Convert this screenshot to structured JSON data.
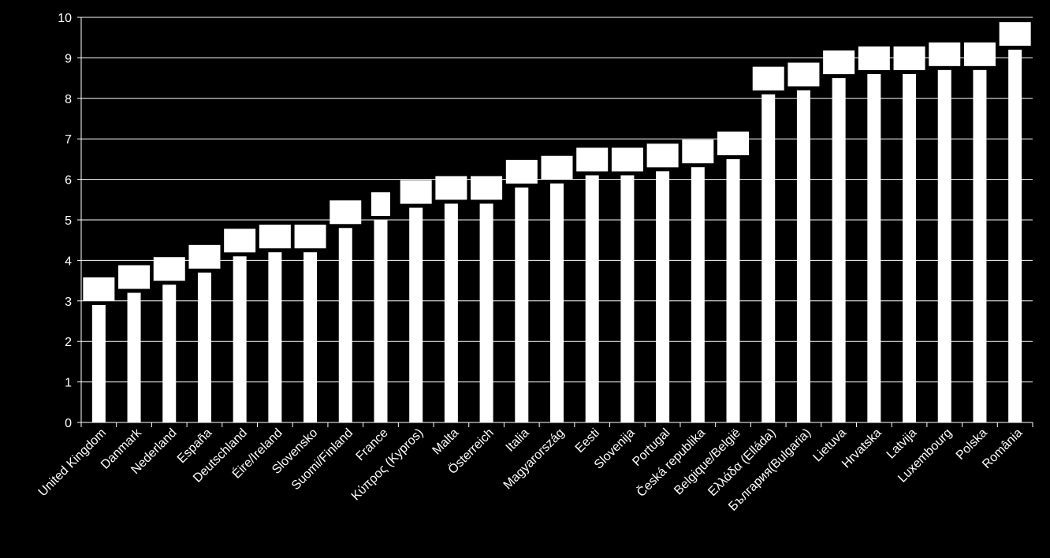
{
  "chart_data": {
    "type": "bar",
    "title": "",
    "xlabel": "",
    "ylabel": "",
    "ylim": [
      0,
      10
    ],
    "yticks": [
      "0",
      "1",
      "2",
      "3",
      "4",
      "5",
      "6",
      "7",
      "8",
      "9",
      "10"
    ],
    "grid": true,
    "categories": [
      "United Kingdom",
      "Danmark",
      "Nederland",
      "España",
      "Deutschland",
      "Éire/Ireland",
      "Slovensko",
      "Suomi/Finland",
      "France",
      "Κύπρος (Kypros)",
      "Malta",
      "Österreich",
      "Italia",
      "Magyarország",
      "Eesti",
      "Slovenija",
      "Portugal",
      "Česká republika",
      "Belgique/België",
      "Ελλάδα (Elláda)",
      "България(Bulgaria)",
      "Lietuva",
      "Hrvatska",
      "Latvija",
      "Luxembourg",
      "Polska",
      "România"
    ],
    "values": [
      2.9,
      3.2,
      3.4,
      3.7,
      4.1,
      4.2,
      4.2,
      4.8,
      5.0,
      5.3,
      5.4,
      5.4,
      5.8,
      5.9,
      6.1,
      6.1,
      6.2,
      6.3,
      6.5,
      8.1,
      8.2,
      8.5,
      8.6,
      8.6,
      8.7,
      8.7,
      9.2
    ],
    "colors": {
      "background": "#000000",
      "bar": "#ffffff",
      "grid": "#ffffff",
      "label_box": "#ffffff"
    }
  }
}
